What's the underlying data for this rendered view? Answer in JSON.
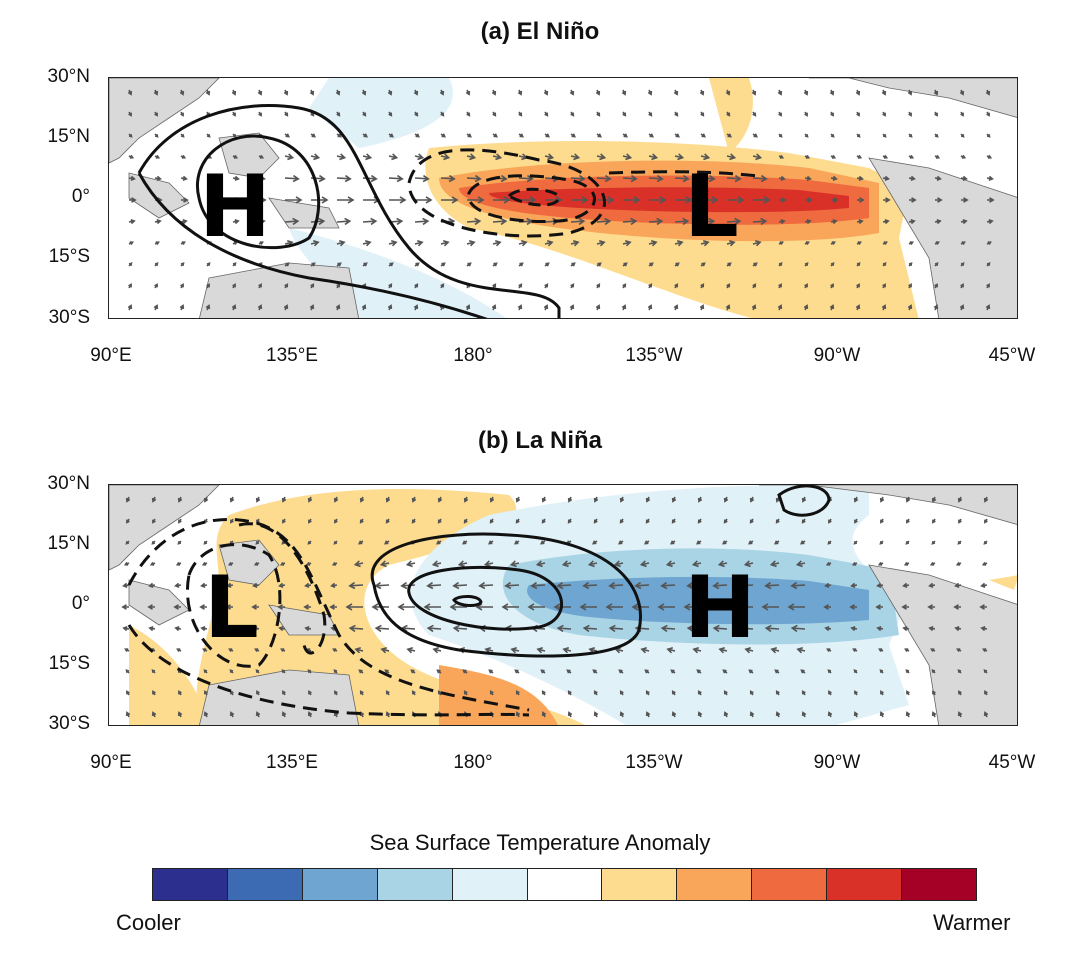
{
  "panels": [
    {
      "title": "(a) El Niño",
      "high_label": "H",
      "low_label": "L"
    },
    {
      "title": "(b) La Niña",
      "high_label": "H",
      "low_label": "L"
    }
  ],
  "lat_labels": [
    "30°N",
    "15°N",
    "0°",
    "15°S",
    "30°S"
  ],
  "lon_labels": [
    "90°E",
    "135°E",
    "180°",
    "135°W",
    "90°W",
    "45°W"
  ],
  "legend": {
    "title": "Sea Surface Temperature Anomaly",
    "low_label": "Cooler",
    "high_label": "Warmer",
    "colors": [
      "#2c2f8e",
      "#3d6bb3",
      "#6fa6d1",
      "#a9d4e6",
      "#e0f1f8",
      "#ffffff",
      "#fddc8f",
      "#f9a65a",
      "#ef6a3f",
      "#d93027",
      "#a50026"
    ]
  },
  "colors": {
    "land": "#d9d9d9",
    "contour": "#111111",
    "wind_arrow": "#555555"
  }
}
